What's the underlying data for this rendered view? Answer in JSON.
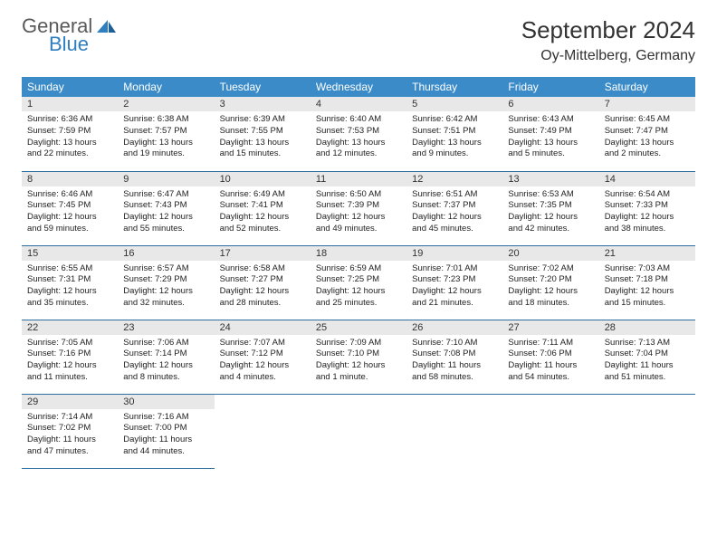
{
  "brand": {
    "name1": "General",
    "name2": "Blue"
  },
  "title": "September 2024",
  "location": "Oy-Mittelberg, Germany",
  "colors": {
    "header_bg": "#3b8bc8",
    "header_text": "#ffffff",
    "daynum_bg": "#e8e8e8",
    "text": "#222222",
    "logo_gray": "#5a5a5a",
    "logo_blue": "#2f7fc0",
    "row_border": "#2f6fa0"
  },
  "day_headers": [
    "Sunday",
    "Monday",
    "Tuesday",
    "Wednesday",
    "Thursday",
    "Friday",
    "Saturday"
  ],
  "weeks": [
    [
      {
        "n": "1",
        "sr": "6:36 AM",
        "ss": "7:59 PM",
        "dl": "13 hours and 22 minutes."
      },
      {
        "n": "2",
        "sr": "6:38 AM",
        "ss": "7:57 PM",
        "dl": "13 hours and 19 minutes."
      },
      {
        "n": "3",
        "sr": "6:39 AM",
        "ss": "7:55 PM",
        "dl": "13 hours and 15 minutes."
      },
      {
        "n": "4",
        "sr": "6:40 AM",
        "ss": "7:53 PM",
        "dl": "13 hours and 12 minutes."
      },
      {
        "n": "5",
        "sr": "6:42 AM",
        "ss": "7:51 PM",
        "dl": "13 hours and 9 minutes."
      },
      {
        "n": "6",
        "sr": "6:43 AM",
        "ss": "7:49 PM",
        "dl": "13 hours and 5 minutes."
      },
      {
        "n": "7",
        "sr": "6:45 AM",
        "ss": "7:47 PM",
        "dl": "13 hours and 2 minutes."
      }
    ],
    [
      {
        "n": "8",
        "sr": "6:46 AM",
        "ss": "7:45 PM",
        "dl": "12 hours and 59 minutes."
      },
      {
        "n": "9",
        "sr": "6:47 AM",
        "ss": "7:43 PM",
        "dl": "12 hours and 55 minutes."
      },
      {
        "n": "10",
        "sr": "6:49 AM",
        "ss": "7:41 PM",
        "dl": "12 hours and 52 minutes."
      },
      {
        "n": "11",
        "sr": "6:50 AM",
        "ss": "7:39 PM",
        "dl": "12 hours and 49 minutes."
      },
      {
        "n": "12",
        "sr": "6:51 AM",
        "ss": "7:37 PM",
        "dl": "12 hours and 45 minutes."
      },
      {
        "n": "13",
        "sr": "6:53 AM",
        "ss": "7:35 PM",
        "dl": "12 hours and 42 minutes."
      },
      {
        "n": "14",
        "sr": "6:54 AM",
        "ss": "7:33 PM",
        "dl": "12 hours and 38 minutes."
      }
    ],
    [
      {
        "n": "15",
        "sr": "6:55 AM",
        "ss": "7:31 PM",
        "dl": "12 hours and 35 minutes."
      },
      {
        "n": "16",
        "sr": "6:57 AM",
        "ss": "7:29 PM",
        "dl": "12 hours and 32 minutes."
      },
      {
        "n": "17",
        "sr": "6:58 AM",
        "ss": "7:27 PM",
        "dl": "12 hours and 28 minutes."
      },
      {
        "n": "18",
        "sr": "6:59 AM",
        "ss": "7:25 PM",
        "dl": "12 hours and 25 minutes."
      },
      {
        "n": "19",
        "sr": "7:01 AM",
        "ss": "7:23 PM",
        "dl": "12 hours and 21 minutes."
      },
      {
        "n": "20",
        "sr": "7:02 AM",
        "ss": "7:20 PM",
        "dl": "12 hours and 18 minutes."
      },
      {
        "n": "21",
        "sr": "7:03 AM",
        "ss": "7:18 PM",
        "dl": "12 hours and 15 minutes."
      }
    ],
    [
      {
        "n": "22",
        "sr": "7:05 AM",
        "ss": "7:16 PM",
        "dl": "12 hours and 11 minutes."
      },
      {
        "n": "23",
        "sr": "7:06 AM",
        "ss": "7:14 PM",
        "dl": "12 hours and 8 minutes."
      },
      {
        "n": "24",
        "sr": "7:07 AM",
        "ss": "7:12 PM",
        "dl": "12 hours and 4 minutes."
      },
      {
        "n": "25",
        "sr": "7:09 AM",
        "ss": "7:10 PM",
        "dl": "12 hours and 1 minute."
      },
      {
        "n": "26",
        "sr": "7:10 AM",
        "ss": "7:08 PM",
        "dl": "11 hours and 58 minutes."
      },
      {
        "n": "27",
        "sr": "7:11 AM",
        "ss": "7:06 PM",
        "dl": "11 hours and 54 minutes."
      },
      {
        "n": "28",
        "sr": "7:13 AM",
        "ss": "7:04 PM",
        "dl": "11 hours and 51 minutes."
      }
    ],
    [
      {
        "n": "29",
        "sr": "7:14 AM",
        "ss": "7:02 PM",
        "dl": "11 hours and 47 minutes."
      },
      {
        "n": "30",
        "sr": "7:16 AM",
        "ss": "7:00 PM",
        "dl": "11 hours and 44 minutes."
      },
      null,
      null,
      null,
      null,
      null
    ]
  ],
  "labels": {
    "sunrise": "Sunrise:",
    "sunset": "Sunset:",
    "daylight": "Daylight:"
  }
}
